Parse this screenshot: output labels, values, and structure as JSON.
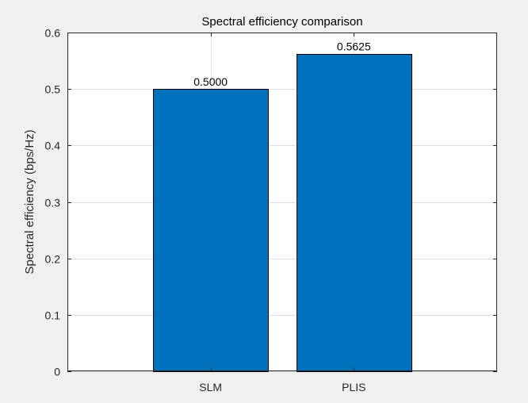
{
  "chart_data": {
    "type": "bar",
    "title": "Spectral efficiency comparison",
    "xlabel": "",
    "ylabel": "Spectral efficiency (bps/Hz)",
    "categories": [
      "SLM",
      "PLIS"
    ],
    "values": [
      0.5,
      0.5625
    ],
    "data_labels": [
      "0.5000",
      "0.5625"
    ],
    "ylim": [
      0,
      0.6
    ],
    "yticks": [
      0,
      0.1,
      0.2,
      0.3,
      0.4,
      0.5,
      0.6
    ],
    "ytick_labels": [
      "0",
      "0.1",
      "0.2",
      "0.3",
      "0.4",
      "0.5",
      "0.6"
    ],
    "xlim": [
      0,
      3
    ],
    "grid": true,
    "bar_color": "#0072bd",
    "bar_edge_color": "#000000",
    "background_color": "#f0f0f0",
    "axes_color": "#ffffff",
    "grid_color": "#dfdfdf"
  }
}
